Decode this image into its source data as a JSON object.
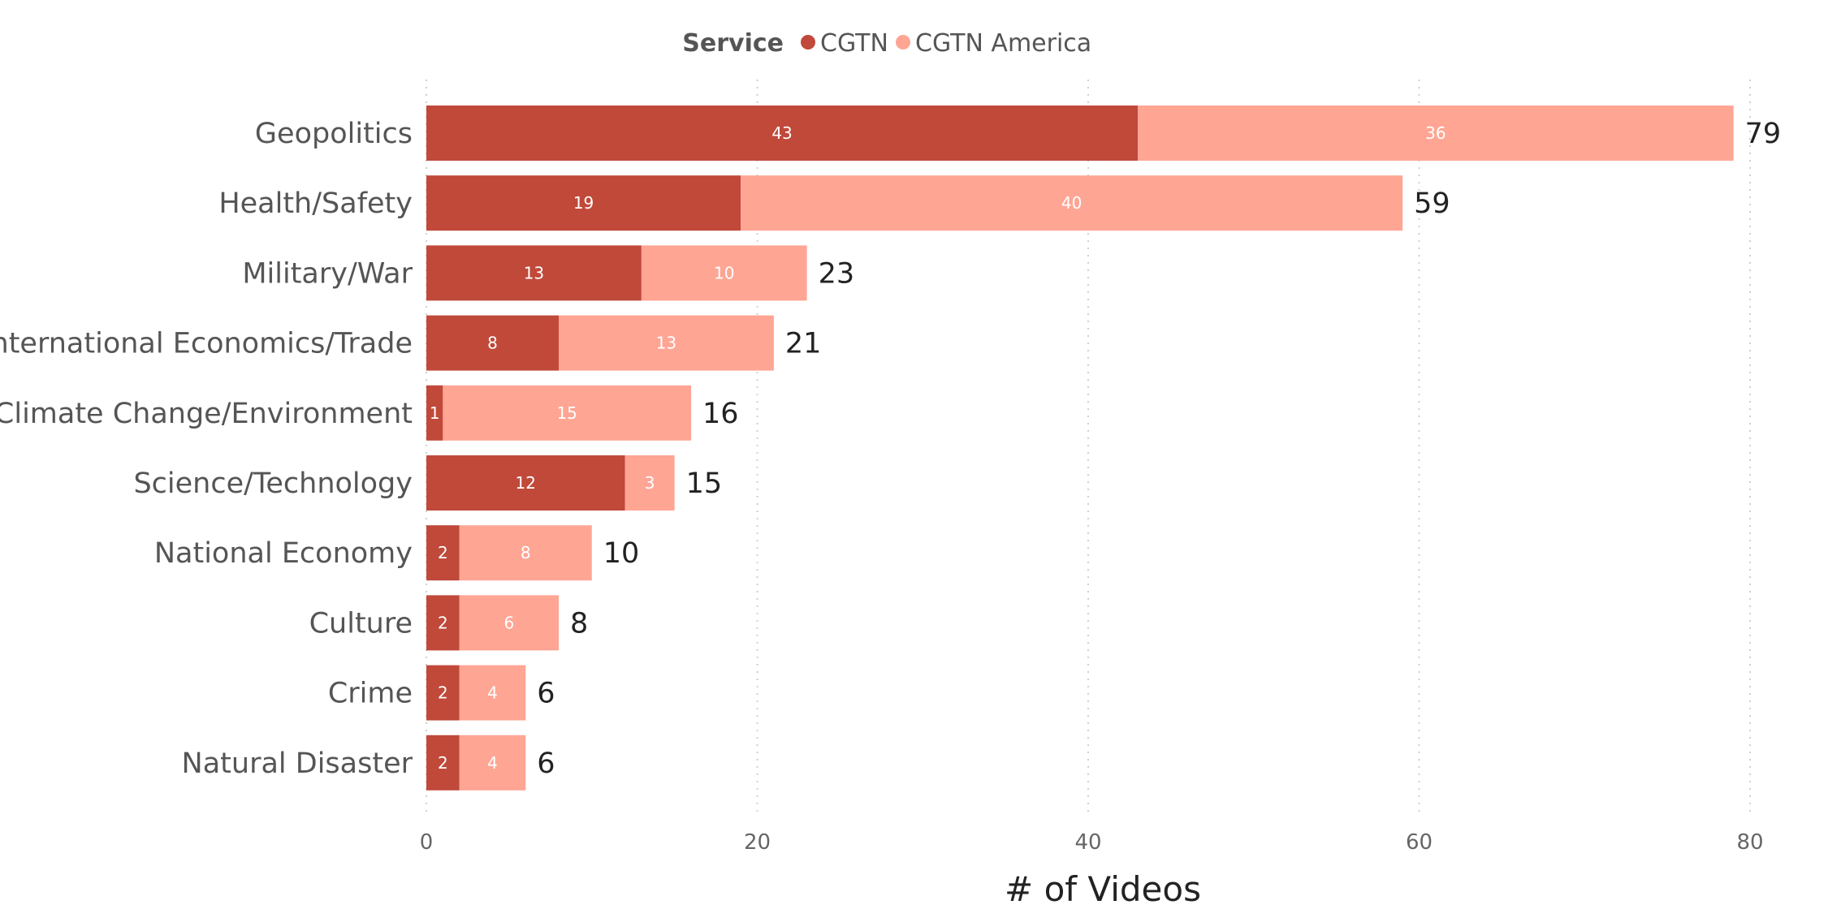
{
  "legend": {
    "title": "Service"
  },
  "colors": {
    "CGTN": "#c0493a",
    "CGTN America": "#ffa594",
    "grid": "#d0d0d0"
  },
  "chart_data": {
    "type": "bar",
    "orientation": "horizontal",
    "stacked": true,
    "title": "",
    "xlabel": "# of Videos",
    "ylabel": "",
    "xlim": [
      0,
      80
    ],
    "xticks": [
      0,
      20,
      40,
      60,
      80
    ],
    "grid": "vertical dotted",
    "legend_position": "top-center",
    "categories": [
      "Geopolitics",
      "Health/Safety",
      "Military/War",
      "International Economics/Trade",
      "Climate Change/Environment",
      "Science/Technology",
      "National Economy",
      "Culture",
      "Crime",
      "Natural Disaster"
    ],
    "series": [
      {
        "name": "CGTN",
        "values": [
          43,
          19,
          13,
          8,
          1,
          12,
          2,
          2,
          2,
          2
        ]
      },
      {
        "name": "CGTN America",
        "values": [
          36,
          40,
          10,
          13,
          15,
          3,
          8,
          6,
          4,
          4
        ]
      }
    ],
    "totals": [
      79,
      59,
      23,
      21,
      16,
      15,
      10,
      8,
      6,
      6
    ]
  }
}
